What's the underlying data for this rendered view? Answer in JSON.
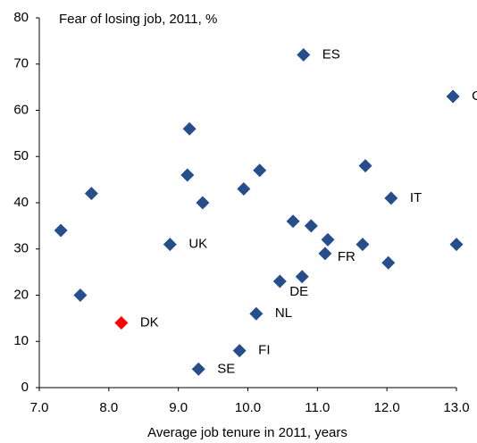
{
  "chart_data": {
    "type": "scatter",
    "title": "Fear of losing job, 2011, %",
    "x_label": "Average job tenure in 2011, years",
    "x": [
      10.8,
      12.95,
      9.16,
      7.75,
      9.13,
      10.17,
      9.94,
      9.35,
      11.69,
      12.06,
      7.31,
      8.88,
      10.65,
      10.91,
      11.15,
      11.65,
      13.0,
      11.11,
      12.02,
      10.78,
      10.46,
      7.59,
      8.18,
      10.12,
      9.88,
      9.29
    ],
    "values": [
      72,
      63,
      56,
      42,
      46,
      47,
      43,
      40,
      48,
      41,
      34,
      31,
      36,
      35,
      32,
      31,
      31,
      29,
      27,
      24,
      23,
      20,
      14,
      16,
      8,
      4
    ],
    "labels": [
      "ES",
      "G",
      null,
      null,
      null,
      null,
      null,
      null,
      null,
      "IT",
      null,
      "UK",
      null,
      null,
      null,
      null,
      null,
      "FR",
      null,
      null,
      "DE",
      null,
      "DK",
      "NL",
      "FI",
      "SE"
    ],
    "colors": [
      "#264d8c",
      "#264d8c",
      "#264d8c",
      "#264d8c",
      "#264d8c",
      "#264d8c",
      "#264d8c",
      "#264d8c",
      "#264d8c",
      "#264d8c",
      "#264d8c",
      "#264d8c",
      "#264d8c",
      "#264d8c",
      "#264d8c",
      "#264d8c",
      "#264d8c",
      "#264d8c",
      "#264d8c",
      "#264d8c",
      "#264d8c",
      "#264d8c",
      "#ff0000",
      "#264d8c",
      "#264d8c",
      "#264d8c"
    ],
    "xlim": [
      7,
      13
    ],
    "ylim": [
      0,
      80
    ],
    "xticks": [
      {
        "value": 7,
        "label": "7.0"
      },
      {
        "value": 8,
        "label": "8.0"
      },
      {
        "value": 9,
        "label": "9.0"
      },
      {
        "value": 10,
        "label": "10.0"
      },
      {
        "value": 11,
        "label": "11.0"
      },
      {
        "value": 12,
        "label": "12.0"
      },
      {
        "value": 13,
        "label": "13.0"
      }
    ],
    "yticks": [
      0,
      10,
      20,
      30,
      40,
      50,
      60,
      70,
      80
    ],
    "grid": false
  }
}
